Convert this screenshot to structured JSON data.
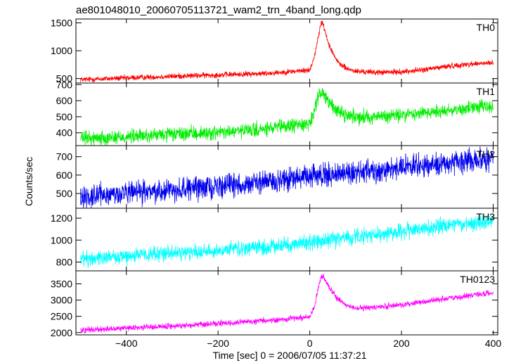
{
  "chart_data": {
    "type": "line",
    "title": "ae801048010_20060705113721_wam2_trn_4band_long.qdp",
    "xlabel": "Time [sec] 0 = 2006/07/05 11:37:21",
    "ylabel": "Counts/sec",
    "xlim": [
      -510,
      410
    ],
    "xticks": [
      -400,
      -200,
      0,
      200,
      400
    ],
    "grid": false,
    "legend": "none",
    "panels": [
      {
        "name": "TH0",
        "color": "#ff0000",
        "ylim": [
          420,
          1570
        ],
        "yticks": [
          500,
          1000,
          1500
        ],
        "x": [
          -500,
          -400,
          -300,
          -200,
          -100,
          0,
          10,
          20,
          25,
          30,
          40,
          60,
          80,
          100,
          150,
          200,
          250,
          300,
          350,
          400
        ],
        "y": [
          480,
          510,
          540,
          565,
          590,
          650,
          900,
          1300,
          1520,
          1450,
          1150,
          800,
          680,
          630,
          610,
          620,
          660,
          720,
          760,
          780
        ],
        "noise": 25
      },
      {
        "name": "TH1",
        "color": "#00ee00",
        "ylim": [
          320,
          710
        ],
        "yticks": [
          400,
          500,
          600,
          700
        ],
        "x": [
          -500,
          -400,
          -300,
          -200,
          -100,
          0,
          10,
          20,
          25,
          30,
          40,
          60,
          80,
          100,
          150,
          200,
          250,
          300,
          350,
          400
        ],
        "y": [
          365,
          375,
          390,
          400,
          420,
          460,
          530,
          630,
          665,
          650,
          590,
          540,
          510,
          500,
          500,
          510,
          525,
          540,
          555,
          565
        ],
        "noise": 22
      },
      {
        "name": "TH2",
        "color": "#0000ee",
        "ylim": [
          420,
          760
        ],
        "yticks": [
          500,
          600,
          700
        ],
        "x": [
          -500,
          -400,
          -300,
          -200,
          -100,
          0,
          100,
          200,
          300,
          400
        ],
        "y": [
          485,
          500,
          520,
          540,
          560,
          590,
          615,
          640,
          665,
          690
        ],
        "noise": 30
      },
      {
        "name": "TH3",
        "color": "#00ffff",
        "ylim": [
          720,
          1290
        ],
        "yticks": [
          800,
          1000,
          1200
        ],
        "x": [
          -500,
          -400,
          -300,
          -200,
          -100,
          0,
          100,
          200,
          300,
          400
        ],
        "y": [
          830,
          855,
          880,
          905,
          935,
          975,
          1030,
          1080,
          1130,
          1170
        ],
        "noise": 35
      },
      {
        "name": "TH0123",
        "color": "#ff00ff",
        "ylim": [
          1930,
          3900
        ],
        "yticks": [
          2000,
          2500,
          3000,
          3500
        ],
        "x": [
          -500,
          -400,
          -300,
          -200,
          -100,
          0,
          10,
          20,
          25,
          30,
          40,
          60,
          80,
          100,
          150,
          200,
          250,
          300,
          350,
          400
        ],
        "y": [
          2080,
          2140,
          2200,
          2270,
          2360,
          2480,
          2800,
          3450,
          3720,
          3700,
          3450,
          3050,
          2850,
          2750,
          2780,
          2850,
          2950,
          3050,
          3150,
          3220
        ],
        "noise": 45
      }
    ]
  }
}
